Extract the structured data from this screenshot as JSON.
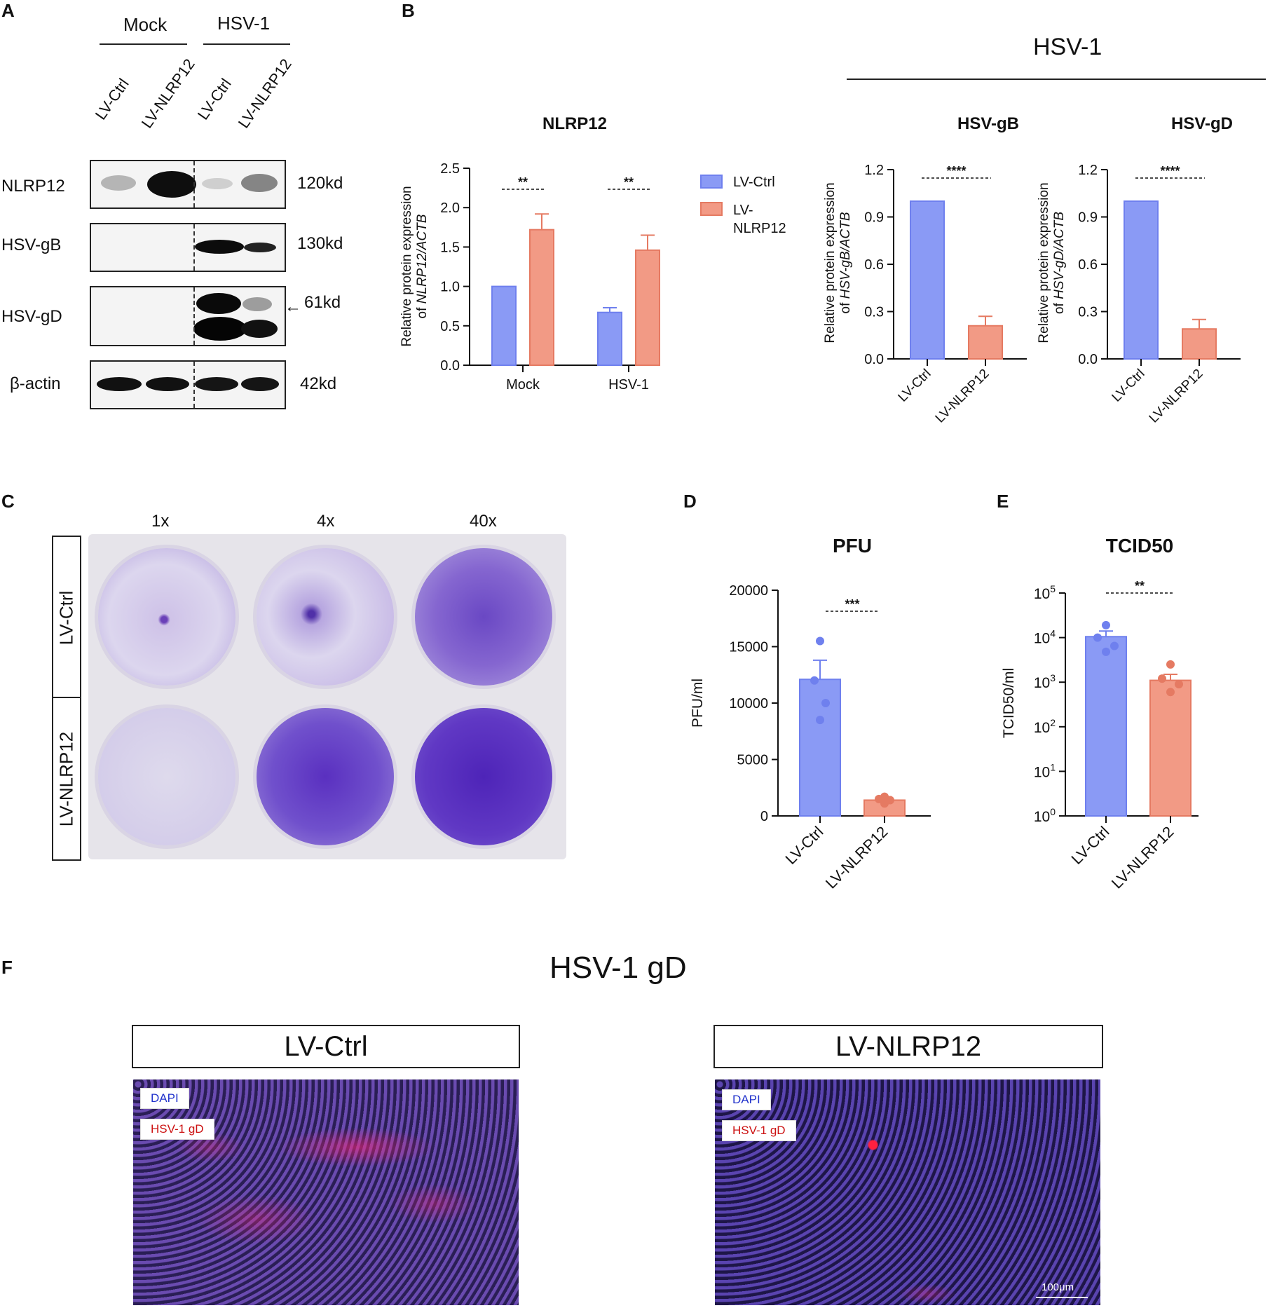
{
  "panels": {
    "A": "A",
    "B": "B",
    "C": "C",
    "D": "D",
    "E": "E",
    "F": "F"
  },
  "blot": {
    "groups": [
      "Mock",
      "HSV-1"
    ],
    "lanes": [
      "LV-Ctrl",
      "LV-NLRP12",
      "LV-Ctrl",
      "LV-NLRP12"
    ],
    "rows": [
      {
        "label": "NLRP12",
        "kd": "120kd"
      },
      {
        "label": "HSV-gB",
        "kd": "130kd"
      },
      {
        "label": "HSV-gD",
        "kd": "61kd"
      },
      {
        "label": "β-actin",
        "kd": "42kd"
      }
    ],
    "arrow": "←"
  },
  "hsv1_header": "HSV-1",
  "colors": {
    "ctrl": "#8a9af5",
    "ctrl_edge": "#6f80ee",
    "nlrp": "#f29a85",
    "nlrp_edge": "#e57a62",
    "dot_ctrl": "#6f80ee",
    "dot_nlrp": "#e57a62"
  },
  "chart_data": [
    {
      "type": "bar",
      "title": "NLRP12",
      "ylabel_line1": "Relative protein expression",
      "ylabel_line2_prefix": "of ",
      "ylabel_line2_italic": "NLRP12/ACTB",
      "categories": [
        "Mock",
        "HSV-1"
      ],
      "series": [
        {
          "name": "LV-Ctrl",
          "values": [
            1.0,
            0.67
          ],
          "errors": [
            0,
            0.06
          ]
        },
        {
          "name": "LV-NLRP12",
          "values": [
            1.72,
            1.46
          ],
          "errors": [
            0.2,
            0.19
          ]
        }
      ],
      "ylim": [
        0,
        2.5
      ],
      "yticks": [
        "0.0",
        "0.5",
        "1.0",
        "1.5",
        "2.0",
        "2.5"
      ],
      "significance": [
        "**",
        "**"
      ],
      "legend": [
        "LV-Ctrl",
        "LV-",
        "NLRP12"
      ]
    },
    {
      "type": "bar",
      "title": "HSV-gB",
      "ylabel_line1": "Relative protein expression",
      "ylabel_line2_prefix": "of ",
      "ylabel_line2_italic": "HSV-gB/ACTB",
      "categories": [
        "LV-Ctrl",
        "LV-NLRP12"
      ],
      "values": [
        1.0,
        0.21
      ],
      "errors": [
        0,
        0.06
      ],
      "ylim": [
        0,
        1.2
      ],
      "yticks": [
        "0.0",
        "0.3",
        "0.6",
        "0.9",
        "1.2"
      ],
      "significance": "****"
    },
    {
      "type": "bar",
      "title": "HSV-gD",
      "ylabel_line1": "Relative protein expression",
      "ylabel_line2_prefix": "of ",
      "ylabel_line2_italic": "HSV-gD/ACTB",
      "categories": [
        "LV-Ctrl",
        "LV-NLRP12"
      ],
      "values": [
        1.0,
        0.19
      ],
      "errors": [
        0,
        0.06
      ],
      "ylim": [
        0,
        1.2
      ],
      "yticks": [
        "0.0",
        "0.3",
        "0.6",
        "0.9",
        "1.2"
      ],
      "significance": "****"
    },
    {
      "type": "bar",
      "title": "PFU",
      "ylabel": "PFU/ml",
      "categories": [
        "LV-Ctrl",
        "LV-NLRP12"
      ],
      "values": [
        12100,
        1400
      ],
      "errors": [
        1700,
        300
      ],
      "points": [
        [
          15500,
          12000,
          10000,
          8500
        ],
        [
          1700,
          1500,
          1400,
          1100
        ]
      ],
      "ylim": [
        0,
        20000
      ],
      "yticks": [
        "0",
        "5000",
        "10000",
        "15000",
        "20000"
      ],
      "significance": "***"
    },
    {
      "type": "bar",
      "title": "TCID50",
      "ylabel": "TCID50/ml",
      "scale": "log",
      "categories": [
        "LV-Ctrl",
        "LV-NLRP12"
      ],
      "values": [
        10500,
        1100
      ],
      "errors_upper": [
        14000,
        1500
      ],
      "points": [
        [
          19000,
          10000,
          6500,
          4800
        ],
        [
          2500,
          1200,
          900,
          600
        ]
      ],
      "ylim": [
        1,
        100000
      ],
      "ytick_exponents": [
        "0",
        "1",
        "2",
        "3",
        "4",
        "5"
      ],
      "ytick_base": "10",
      "significance": "**"
    }
  ],
  "plaque": {
    "dilutions": [
      "1x",
      "4x",
      "40x"
    ],
    "conditions": [
      "LV-Ctrl",
      "LV-NLRP12"
    ]
  },
  "fluorescence": {
    "title": "HSV-1 gD",
    "groups": [
      "LV-Ctrl",
      "LV-NLRP12"
    ],
    "tag_dapi": "DAPI",
    "tag_gd": "HSV-1 gD",
    "scale_bar": "100μm"
  }
}
